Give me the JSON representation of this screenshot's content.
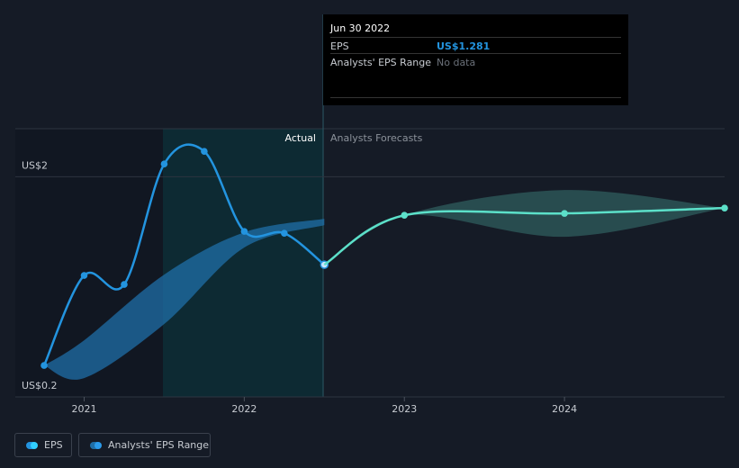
{
  "chart_data": {
    "type": "line",
    "xlim": [
      2020.57,
      2025.0
    ],
    "xticks": [
      2021,
      2022,
      2023,
      2024
    ],
    "ylim": [
      0.2,
      2.4
    ],
    "yticks": [
      {
        "value": 0.2,
        "label": "US$0.2"
      },
      {
        "value": 2,
        "label": "US$2"
      }
    ],
    "grid": true,
    "annotations": [
      "Actual",
      "Analysts Forecasts"
    ],
    "series": [
      {
        "name": "EPS",
        "color": "#2394df",
        "x": [
          2020.75,
          2021,
          2021.25,
          2021.5,
          2021.75,
          2022,
          2022.25,
          2022.5
        ],
        "values": [
          0.457,
          1.193,
          1.119,
          2.104,
          2.207,
          1.553,
          1.538,
          1.281
        ]
      },
      {
        "color": "#5ce0c9",
        "x": [
          2022.5,
          2023,
          2024,
          2025
        ],
        "values": [
          1.281,
          1.685,
          1.7,
          1.744
        ]
      }
    ],
    "ranges": [
      {
        "name": "Analysts' EPS Range",
        "color": "#1f6fa8",
        "x": [
          2020.75,
          2021,
          2021.5,
          2022,
          2022.5
        ],
        "high": [
          0.457,
          0.663,
          1.2,
          1.546,
          1.656
        ],
        "low": [
          0.457,
          0.354,
          0.796,
          1.421,
          1.604
        ]
      },
      {
        "color": "#2f5e5e",
        "x": [
          2022.5,
          2023,
          2024,
          2025
        ],
        "high": [
          1.281,
          1.685,
          1.891,
          1.744
        ],
        "low": [
          1.281,
          1.685,
          1.509,
          1.744
        ]
      }
    ],
    "tooltip": {
      "date": "Jun 30 2022",
      "rows": [
        {
          "label": "EPS",
          "value": "US$1.281"
        },
        {
          "label": "Analysts' EPS Range",
          "value": "No data"
        }
      ]
    }
  }
}
